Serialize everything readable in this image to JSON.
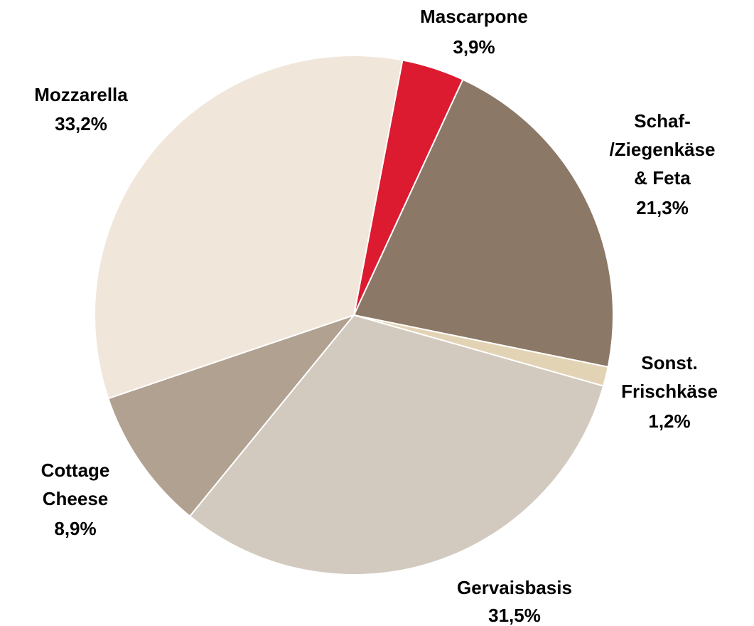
{
  "chart_data": {
    "type": "pie",
    "categories": [
      [
        "Mascarpone"
      ],
      [
        "Schaf-",
        "/Ziegenkäse",
        "& Feta"
      ],
      [
        "Sonst.",
        "Frischkäse"
      ],
      [
        "Gervaisbasis"
      ],
      [
        "Cottage",
        "Cheese"
      ],
      [
        "Mozzarella"
      ]
    ],
    "values": [
      3.9,
      21.3,
      1.2,
      31.5,
      8.9,
      33.2
    ],
    "value_labels": [
      "3,9%",
      "21,3%",
      "1,2%",
      "31,5%",
      "8,9%",
      "33,2%"
    ],
    "colors": [
      "#dc1a30",
      "#8c7866",
      "#e3d3b5",
      "#d2c9bf",
      "#b1a191",
      "#f0e6da"
    ]
  }
}
